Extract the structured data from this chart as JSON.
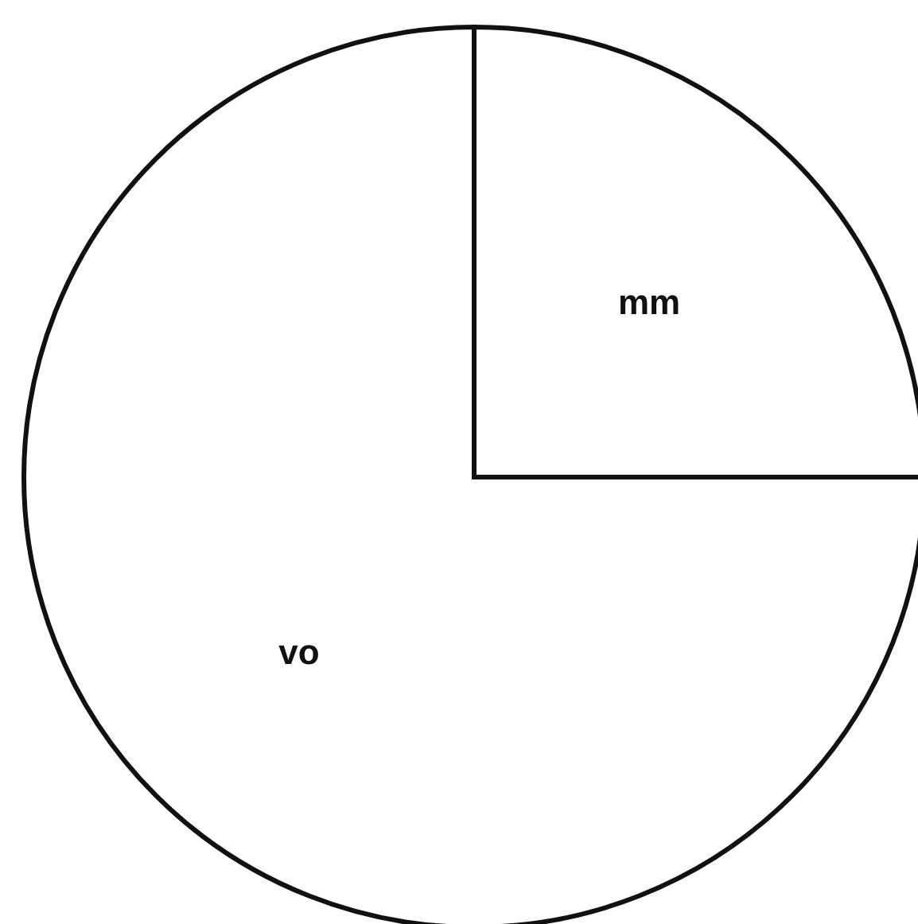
{
  "chart_data": {
    "type": "pie",
    "categories": [
      "mm",
      "vo"
    ],
    "values": [
      25,
      75
    ],
    "colors": [
      "#ffffff",
      "#ffffff"
    ]
  }
}
